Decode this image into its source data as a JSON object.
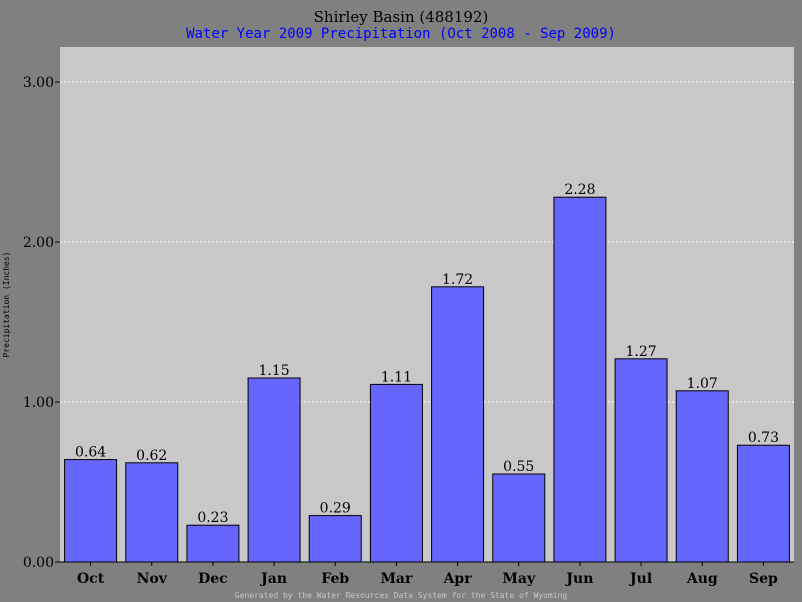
{
  "chart_data": {
    "type": "bar",
    "title": "Shirley Basin (488192)",
    "subtitle": "Water Year 2009 Precipitation (Oct 2008 - Sep 2009)",
    "xlabel": "",
    "ylabel": "Precipitation (Inches)",
    "categories": [
      "Oct",
      "Nov",
      "Dec",
      "Jan",
      "Feb",
      "Mar",
      "Apr",
      "May",
      "Jun",
      "Jul",
      "Aug",
      "Sep"
    ],
    "values": [
      0.64,
      0.62,
      0.23,
      1.15,
      0.29,
      1.11,
      1.72,
      0.55,
      2.28,
      1.27,
      1.07,
      0.73
    ],
    "value_labels": [
      "0.64",
      "0.62",
      "0.23",
      "1.15",
      "0.29",
      "1.11",
      "1.72",
      "0.55",
      "2.28",
      "1.27",
      "1.07",
      "0.73"
    ],
    "ylim": [
      0,
      3.0
    ],
    "yticks": [
      0,
      1,
      2,
      3
    ],
    "ytick_labels": [
      "0.00",
      "1.00",
      "2.00",
      "3.00"
    ],
    "grid": true,
    "bar_color": "#6666ff",
    "plot_background": "#c8c8c8",
    "page_background": "#808080",
    "subtitle_color": "#0000ff",
    "footer": "Generated by the Water Resources Data System for the State of Wyoming"
  }
}
